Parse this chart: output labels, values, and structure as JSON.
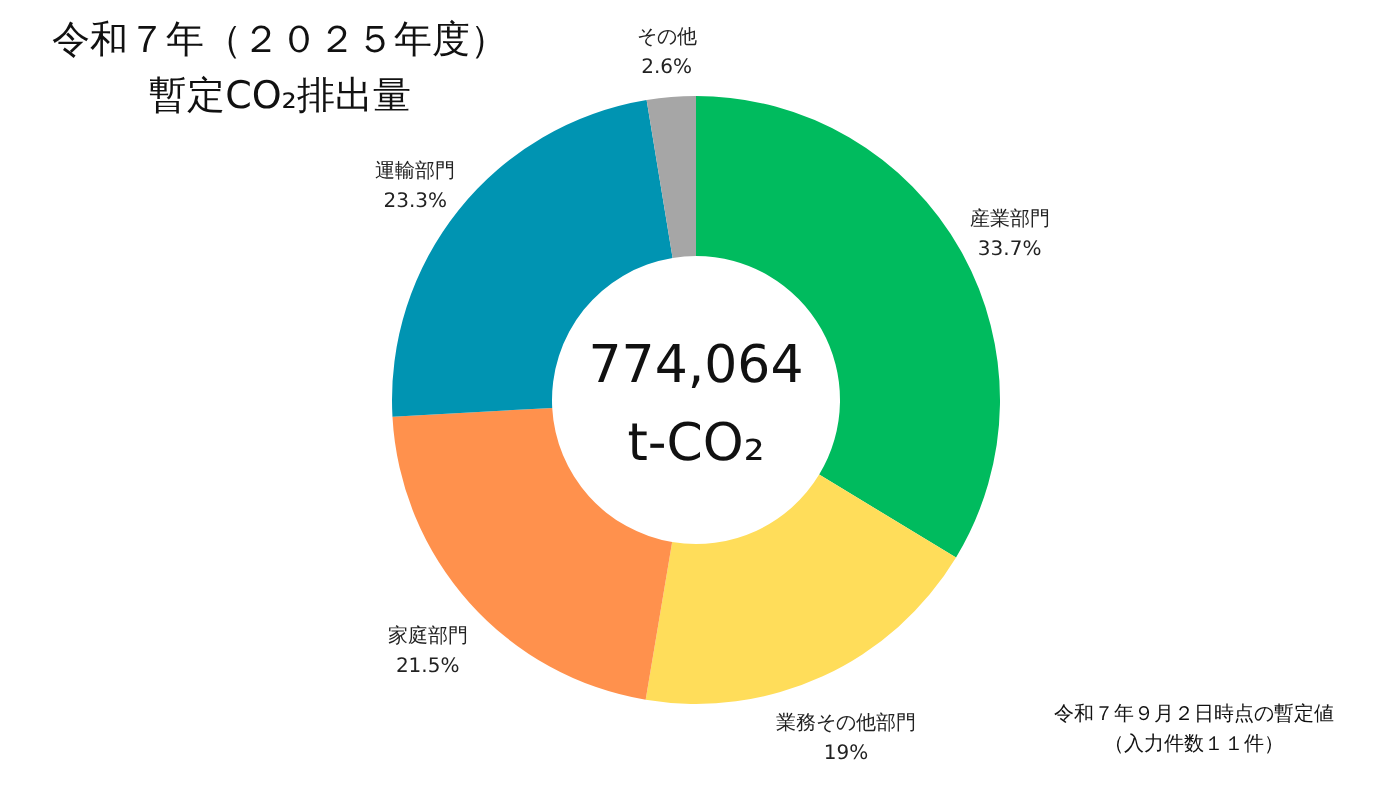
{
  "chart_data": {
    "type": "donut",
    "title": "令和７年（２０２５年度）",
    "subtitle": "暫定CO₂排出量",
    "categories": [
      "産業部門",
      "業務その他部門",
      "家庭部門",
      "運輸部門",
      "その他"
    ],
    "values": [
      33.7,
      19,
      21.5,
      23.3,
      2.6
    ],
    "value_labels": [
      "33.7%",
      "19%",
      "21.5%",
      "23.3%",
      "2.6%"
    ],
    "colors": [
      "#00bb5e",
      "#ffdd5a",
      "#ff914d",
      "#0094b2",
      "#a6a6a6"
    ],
    "annotations": [
      "774,064",
      "t-CO₂",
      "令和７年９月２日時点の暫定値",
      "（入力件数１１件）"
    ]
  }
}
